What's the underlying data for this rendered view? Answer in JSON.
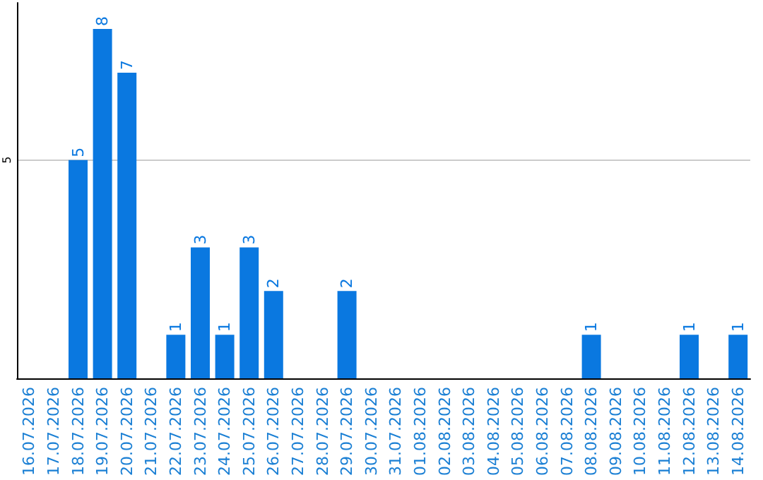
{
  "chart_data": {
    "type": "bar",
    "categories": [
      "16.07.2026",
      "17.07.2026",
      "18.07.2026",
      "19.07.2026",
      "20.07.2026",
      "21.07.2026",
      "22.07.2026",
      "23.07.2026",
      "24.07.2026",
      "25.07.2026",
      "26.07.2026",
      "27.07.2026",
      "28.07.2026",
      "29.07.2026",
      "30.07.2026",
      "31.07.2026",
      "01.08.2026",
      "02.08.2026",
      "03.08.2026",
      "04.08.2026",
      "05.08.2026",
      "06.08.2026",
      "07.08.2026",
      "08.08.2026",
      "09.08.2026",
      "10.08.2026",
      "11.08.2026",
      "12.08.2026",
      "13.08.2026",
      "14.08.2026"
    ],
    "values": [
      0,
      0,
      5,
      8,
      7,
      0,
      1,
      3,
      1,
      3,
      2,
      0,
      0,
      2,
      0,
      0,
      0,
      0,
      0,
      0,
      0,
      0,
      0,
      1,
      0,
      0,
      0,
      1,
      0,
      1
    ],
    "value_labels": [
      null,
      null,
      "5",
      "8",
      "7",
      null,
      "1",
      "3",
      "1",
      "3",
      "2",
      null,
      null,
      "2",
      null,
      null,
      null,
      null,
      null,
      null,
      null,
      null,
      null,
      "1",
      null,
      null,
      null,
      "1",
      null,
      "1"
    ],
    "color": "#0a78e0",
    "ylim": [
      0,
      8.6
    ],
    "yticks": [
      5
    ],
    "grid": "y"
  }
}
